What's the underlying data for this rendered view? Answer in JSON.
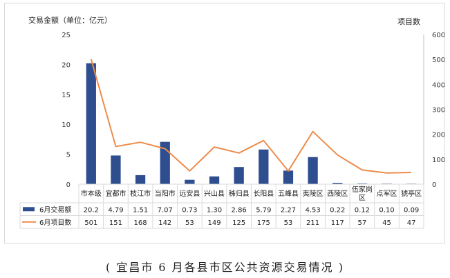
{
  "caption": "( 宜昌市 6 月各县市区公共资源交易情况 )",
  "colors": {
    "bar": "#2e4e8f",
    "line": "#ed8c4c",
    "grid": "#d9d9d9",
    "axis": "#bfbfbf"
  },
  "chart_data": {
    "type": "bar",
    "title": "",
    "ylabel": "交易金额（单位：亿元）",
    "y2label": "项目数",
    "ylim": [
      0,
      25
    ],
    "yticks": [
      0,
      5,
      10,
      15,
      20,
      25
    ],
    "y2lim": [
      0,
      600
    ],
    "y2ticks": [
      0,
      100,
      200,
      300,
      400,
      500,
      600
    ],
    "categories": [
      "市本级",
      "宜都市",
      "枝江市",
      "当阳市",
      "远安县",
      "兴山县",
      "秭归县",
      "长阳县",
      "五峰县",
      "夷陵区",
      "西陵区",
      "伍家岗区",
      "点军区",
      "猇亭区"
    ],
    "series": [
      {
        "name": "6月交易额",
        "type": "bar",
        "axis": "left",
        "values": [
          20.2,
          4.79,
          1.51,
          7.07,
          0.73,
          1.3,
          2.86,
          5.79,
          2.27,
          4.53,
          0.22,
          0.12,
          0.1,
          0.09
        ],
        "labels": [
          "20.2",
          "4.79",
          "1.51",
          "7.07",
          "0.73",
          "1.30",
          "2.86",
          "5.79",
          "2.27",
          "4.53",
          "0.22",
          "0.12",
          "0.10",
          "0.09"
        ]
      },
      {
        "name": "6月项目数",
        "type": "line",
        "axis": "right",
        "values": [
          501,
          151,
          168,
          142,
          53,
          149,
          125,
          175,
          53,
          211,
          117,
          57,
          45,
          47
        ],
        "labels": [
          "501",
          "151",
          "168",
          "142",
          "53",
          "149",
          "125",
          "175",
          "53",
          "211",
          "117",
          "57",
          "45",
          "47"
        ]
      }
    ],
    "legend": "data-table"
  }
}
